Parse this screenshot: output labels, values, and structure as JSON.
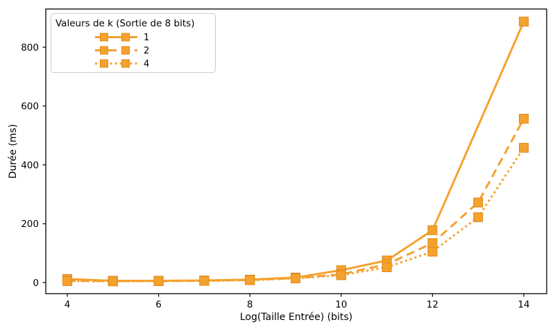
{
  "colors": {
    "accent": "#F5A12E",
    "marker_edge": "#DE8A1B",
    "axis": "#000000",
    "legend_border": "#CCCCCC",
    "background": "#FFFFFF"
  },
  "chart_data": {
    "type": "line",
    "x": [
      4,
      5,
      6,
      7,
      8,
      9,
      10,
      11,
      12,
      13,
      14
    ],
    "series": [
      {
        "name": "1",
        "linestyle": "solid",
        "marker": "square",
        "values": [
          12,
          6,
          6,
          7,
          10,
          17,
          42,
          75,
          178,
          null,
          887
        ]
      },
      {
        "name": "2",
        "linestyle": "dashed",
        "marker": "square",
        "values": [
          6,
          5,
          5,
          6,
          9,
          15,
          28,
          62,
          134,
          272,
          557
        ]
      },
      {
        "name": "4",
        "linestyle": "dotted",
        "marker": "square",
        "values": [
          5,
          4,
          5,
          6,
          8,
          14,
          25,
          52,
          105,
          222,
          458
        ]
      }
    ],
    "legend_title": "Valeurs de k (Sortie de 8 bits)",
    "legend_position": "upper left",
    "xlabel": "Log(Taille Entrée) (bits)",
    "ylabel": "Durée (ms)",
    "x_ticks": [
      4,
      6,
      8,
      10,
      12,
      14
    ],
    "y_ticks": [
      0,
      200,
      400,
      600,
      800
    ],
    "xlim": [
      3.5,
      14.5
    ],
    "ylim": [
      -45,
      930
    ],
    "grid": false
  }
}
